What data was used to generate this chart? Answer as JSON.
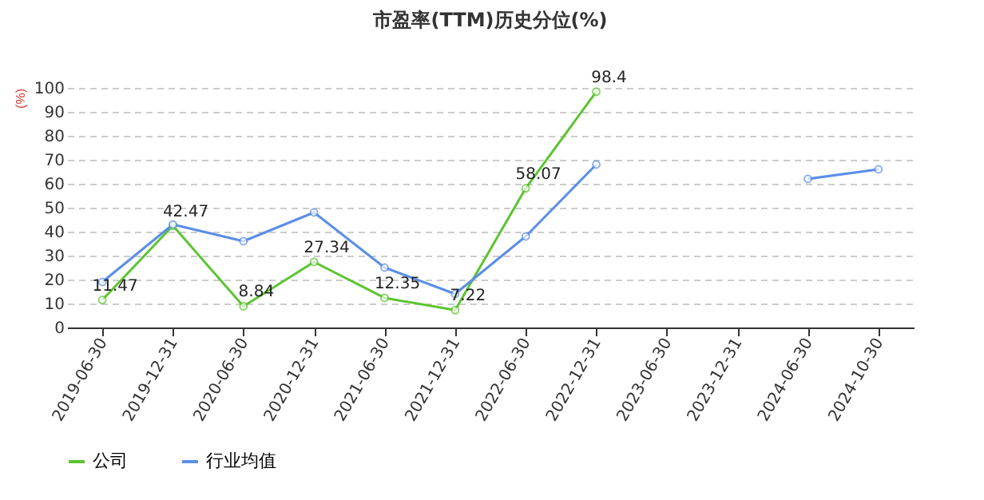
{
  "chart_data": {
    "type": "line",
    "title": "市盈率(TTM)历史分位(%)",
    "ylabel": "(%)",
    "categories": [
      "2019-06-30",
      "2019-12-31",
      "2020-06-30",
      "2020-12-31",
      "2021-06-30",
      "2021-12-31",
      "2022-06-30",
      "2022-12-31",
      "2023-06-30",
      "2023-12-31",
      "2024-06-30",
      "2024-10-30"
    ],
    "series": [
      {
        "name": "公司",
        "color": "#5cc430",
        "values": [
          11.47,
          42.47,
          8.84,
          27.34,
          12.35,
          7.22,
          58.07,
          98.4,
          null,
          null,
          null,
          null
        ],
        "value_labels": [
          "11.47",
          "42.47",
          "8.84",
          "27.34",
          "12.35",
          "7.22",
          "58.07",
          "98.4",
          null,
          null,
          null,
          null
        ]
      },
      {
        "name": "行业均值",
        "color": "#5b8ee6",
        "values": [
          19,
          43,
          36,
          48,
          25,
          14,
          38,
          68,
          null,
          null,
          62,
          66
        ]
      }
    ],
    "ylim": [
      0,
      100
    ],
    "yticks": [
      0,
      10,
      20,
      30,
      40,
      50,
      60,
      70,
      80,
      90,
      100
    ],
    "grid": "y",
    "legend": "bottom",
    "marker": "circle",
    "line_style": "solid"
  }
}
